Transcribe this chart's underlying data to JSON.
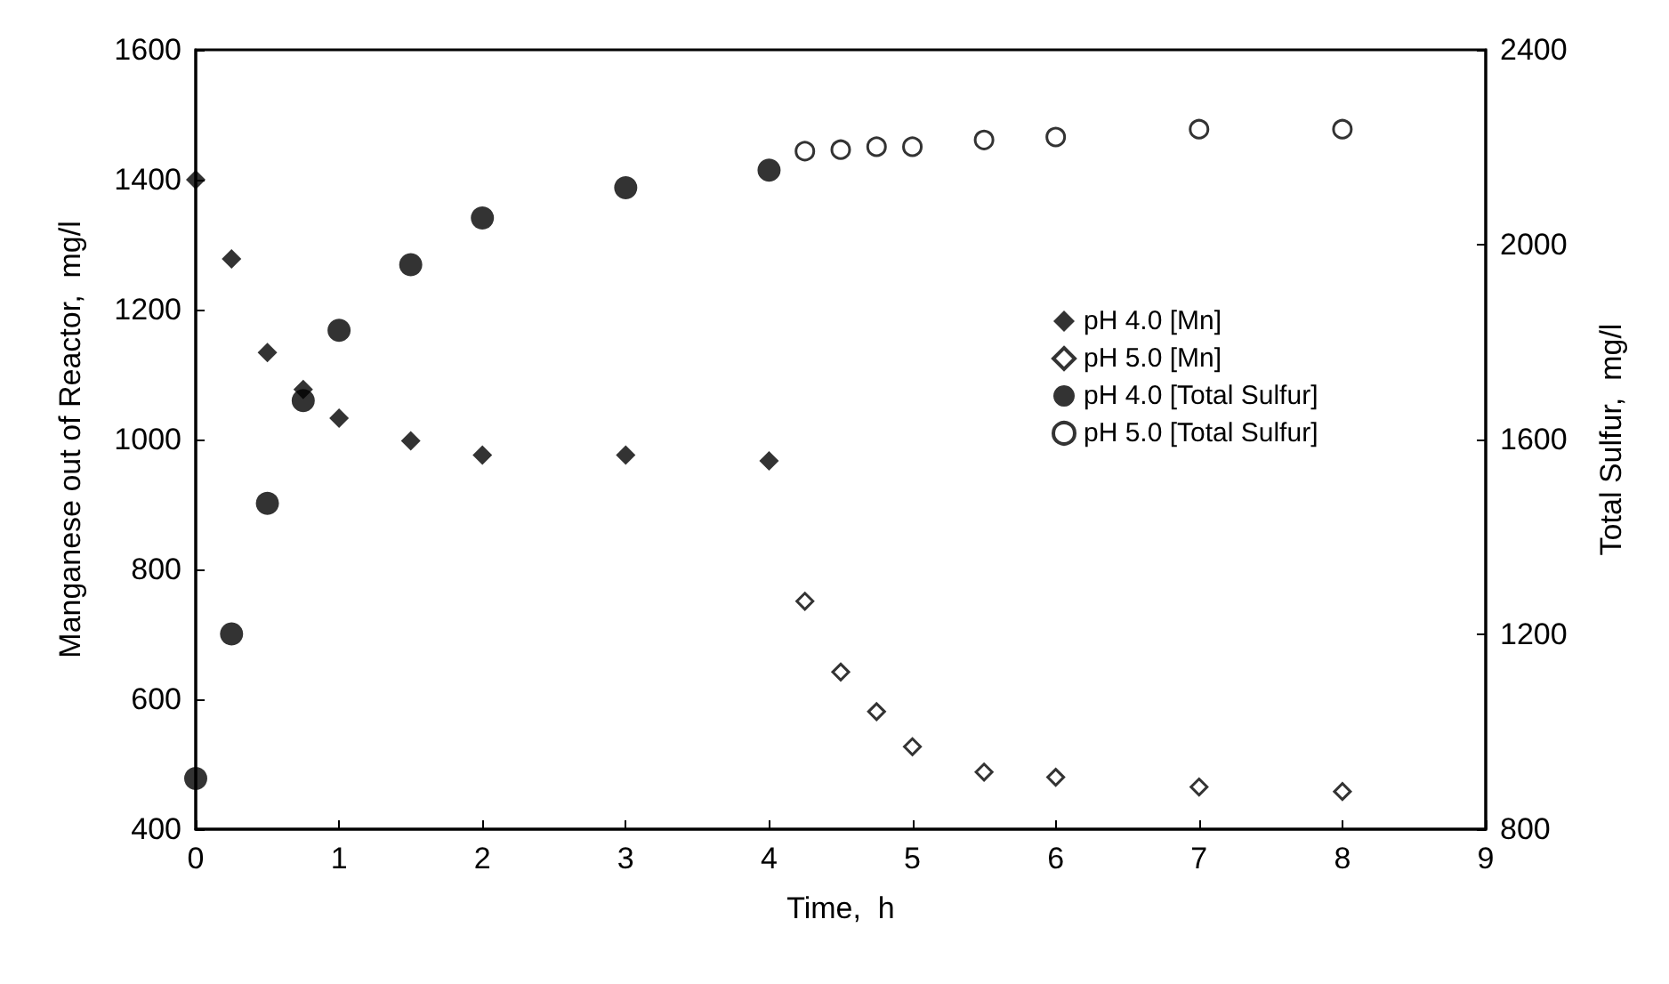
{
  "chart_data": {
    "type": "scatter",
    "xlabel": "Time,  h",
    "ylabel": "Manganese out of Reactor,  mg/l",
    "y2label": "Total Sulfur,  mg/l",
    "xlim": [
      0,
      9
    ],
    "xticks": [
      0,
      1,
      2,
      3,
      4,
      5,
      6,
      7,
      8,
      9
    ],
    "ylim": [
      400,
      1600
    ],
    "yticks": [
      400,
      600,
      800,
      1000,
      1200,
      1400,
      1600
    ],
    "y2lim": [
      800,
      2400
    ],
    "y2ticks": [
      800,
      1200,
      1600,
      2000,
      2400
    ],
    "grid": false,
    "legend": "right",
    "series": [
      {
        "name": "pH 4.0 [Mn]",
        "color": "#000000",
        "marker": "diamond",
        "x": [
          0,
          0.25,
          0.5,
          0.75,
          1,
          1.5,
          2,
          3,
          4
        ],
        "values": [
          1400,
          1278,
          1134,
          1077,
          1033,
          998,
          976,
          976,
          967
        ]
      },
      {
        "name": "pH 5.0 [Mn]",
        "color": "#ffffff",
        "marker": "diamond",
        "x": [
          4.25,
          4.5,
          4.75,
          5,
          5.5,
          6,
          7,
          8
        ],
        "values": [
          751,
          642,
          581,
          527,
          488,
          480,
          465,
          458
        ]
      },
      {
        "name": "pH 4.0 [Total Sulfur]",
        "color": "#000000",
        "marker": "circle",
        "axis": "y2",
        "x": [
          0,
          0.25,
          0.5,
          0.75,
          1,
          1.5,
          2,
          3,
          4
        ],
        "values": [
          904,
          1201,
          1469,
          1680,
          1824,
          1959,
          2055,
          2117,
          2153
        ]
      },
      {
        "name": "pH 5.0 [Total Sulfur]",
        "color": "#ffffff",
        "marker": "circle",
        "axis": "y2",
        "x": [
          4.25,
          4.5,
          4.75,
          5,
          5.5,
          6,
          7,
          8
        ],
        "values": [
          2192,
          2195,
          2201,
          2201,
          2215,
          2221,
          2237,
          2237
        ]
      }
    ]
  }
}
